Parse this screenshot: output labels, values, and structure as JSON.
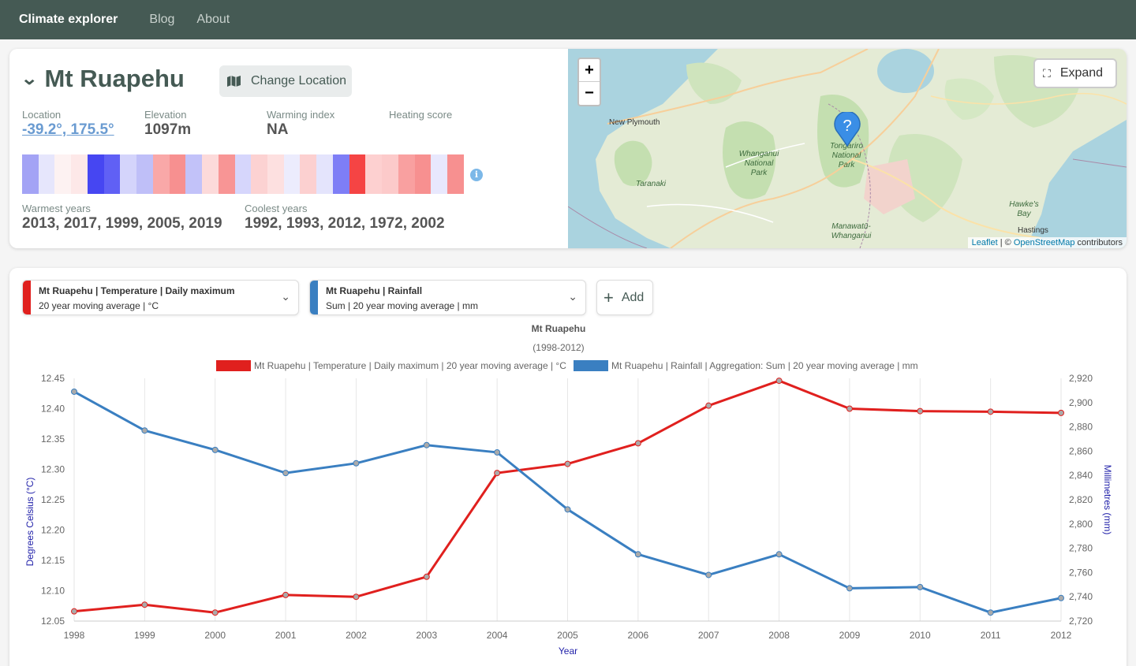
{
  "nav": {
    "brand": "Climate explorer",
    "links": [
      "Blog",
      "About"
    ]
  },
  "location": {
    "title": "Mt Ruapehu",
    "change_label": "Change Location",
    "stats": [
      {
        "label": "Location",
        "value": "-39.2°, 175.5°"
      },
      {
        "label": "Elevation",
        "value": "1097m"
      },
      {
        "label": "Warming index",
        "value": "NA"
      },
      {
        "label": "Heating score",
        "value": ""
      }
    ],
    "stripe_colors": [
      "#a3a3f5",
      "#e6e6fc",
      "#fdf2f2",
      "#fde8e8",
      "#4646f2",
      "#6060f5",
      "#d4d4fb",
      "#bfbff8",
      "#f9a8a8",
      "#f79090",
      "#c2c2f9",
      "#fcdada",
      "#f89595",
      "#d6d6fc",
      "#fcd2d2",
      "#fde0e0",
      "#ececfd",
      "#fcd0d0",
      "#e4e4fc",
      "#7e7ef6",
      "#f54444",
      "#fdd0d0",
      "#fccaca",
      "#f9a0a0",
      "#f79090",
      "#e8e8fd",
      "#f79090"
    ],
    "warmest_label": "Warmest years",
    "warmest_years": "2013, 2017, 1999, 2005, 2019",
    "coolest_label": "Coolest years",
    "coolest_years": "1992, 1993, 2012, 1972, 2002"
  },
  "map": {
    "zoom_in": "+",
    "zoom_out": "−",
    "expand_label": "Expand",
    "labels": [
      "New Plymouth",
      "Taranaki",
      "Whanganui National Park",
      "Tongariro National Park",
      "Manawatū-Whanganui",
      "Hawke's Bay",
      "Hastings"
    ],
    "attrib_leaflet": "Leaflet",
    "attrib_sep": " | © ",
    "attrib_osm": "OpenStreetMap",
    "attrib_tail": " contributors",
    "marker_glyph": "?"
  },
  "chart_controls": {
    "series": [
      {
        "line1": "Mt Ruapehu | Temperature | Daily maximum",
        "line2": "20 year moving average | °C",
        "color": "#e0201e"
      },
      {
        "line1": "Mt Ruapehu | Rainfall",
        "line2": "Sum | 20 year moving average | mm",
        "color": "#3a7fc1"
      }
    ],
    "add_label": "Add"
  },
  "chart_data": {
    "type": "line",
    "title": "Mt Ruapehu",
    "subtitle": "(1998-2012)",
    "xlabel": "Year",
    "ylabel_left": "Degrees Celsius (°C)",
    "ylabel_right": "Millimetres (mm)",
    "x": [
      1998,
      1999,
      2000,
      2001,
      2002,
      2003,
      2004,
      2005,
      2006,
      2007,
      2008,
      2009,
      2010,
      2011,
      2012
    ],
    "left_ylim": [
      12.05,
      12.45
    ],
    "left_ticks": [
      "12.45",
      "12.40",
      "12.35",
      "12.30",
      "12.25",
      "12.20",
      "12.15",
      "12.10",
      "12.05"
    ],
    "right_ylim": [
      2720,
      2920
    ],
    "right_ticks": [
      "2,920",
      "2,900",
      "2,880",
      "2,860",
      "2,840",
      "2,820",
      "2,800",
      "2,780",
      "2,760",
      "2,740",
      "2,720"
    ],
    "series": [
      {
        "name": "Mt Ruapehu | Temperature | Daily maximum | 20 year moving average | °C",
        "color": "#e0201e",
        "axis": "left",
        "values": [
          12.066,
          12.077,
          12.064,
          12.093,
          12.09,
          12.123,
          12.294,
          12.309,
          12.343,
          12.405,
          12.446,
          12.4,
          12.396,
          12.395,
          12.393
        ]
      },
      {
        "name": "Mt Ruapehu | Rainfall | Aggregation: Sum | 20 year moving average | mm",
        "color": "#3a7fc1",
        "axis": "right",
        "values": [
          2909,
          2877,
          2861,
          2842,
          2850,
          2865,
          2859,
          2812,
          2775,
          2758,
          2775,
          2747,
          2748,
          2727,
          2739
        ]
      }
    ],
    "grid": true,
    "legend": "top"
  }
}
